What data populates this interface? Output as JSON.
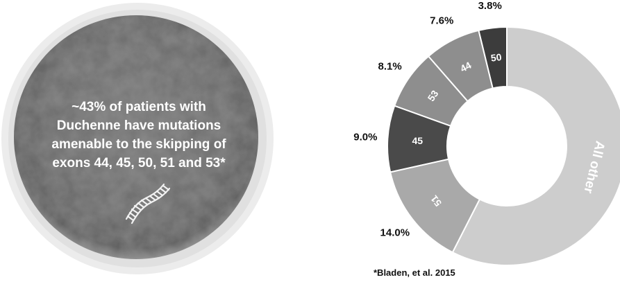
{
  "cell": {
    "message_lines": [
      "~43% of patients with",
      "Duchenne have mutations",
      "amenable to the skipping of",
      "exons 44, 45, 50, 51 and 53*"
    ],
    "icon": "dna-strand-icon"
  },
  "chart_data": {
    "type": "pie",
    "donut": true,
    "slices": [
      {
        "label": "50",
        "percent": 3.8,
        "percent_label": "3.8%",
        "color": "#3c3c3c"
      },
      {
        "label": "44",
        "percent": 7.6,
        "percent_label": "7.6%",
        "color": "#8e8e8e"
      },
      {
        "label": "53",
        "percent": 8.1,
        "percent_label": "8.1%",
        "color": "#8e8e8e"
      },
      {
        "label": "45",
        "percent": 9.0,
        "percent_label": "9.0%",
        "color": "#4a4a4a"
      },
      {
        "label": "51",
        "percent": 14.0,
        "percent_label": "14.0%",
        "color": "#a9a9a9"
      },
      {
        "label": "All other",
        "percent": 57.5,
        "percent_label": "",
        "color": "#cdcdcd"
      }
    ],
    "footnote": "*Bladen, et al. 2015"
  },
  "colors": {
    "cell_outer": "#e9e9e9",
    "cell_inner": "#6b6b6b",
    "message_text": "#ffffff"
  }
}
